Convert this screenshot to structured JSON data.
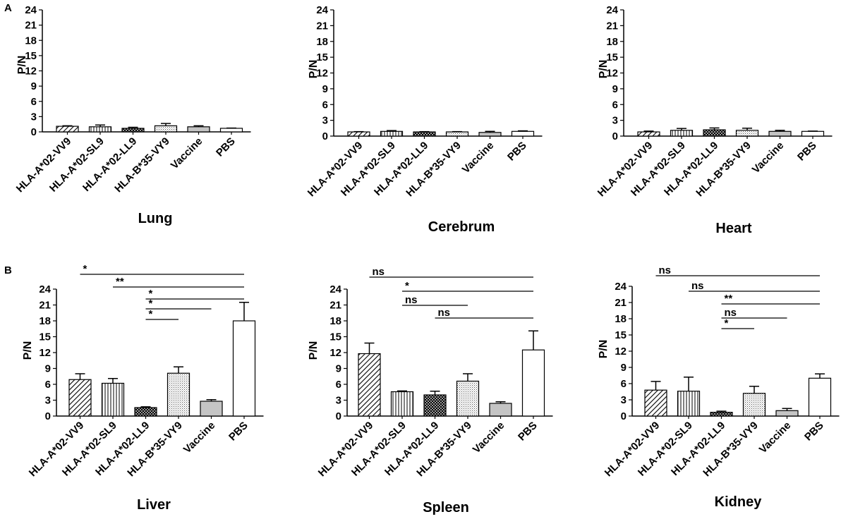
{
  "panel_labels": [
    "A",
    "B"
  ],
  "chart_data": [
    {
      "type": "bar",
      "title": "Lung",
      "ylabel": "P/N",
      "ylim": [
        0,
        24
      ],
      "yticks": [
        0,
        3,
        6,
        9,
        12,
        15,
        18,
        21,
        24
      ],
      "categories": [
        "HLA-A*02-VV9",
        "HLA-A*02-SL9",
        "HLA-A*02-LL9",
        "HLA-B*35-VY9",
        "Vaccine",
        "PBS"
      ],
      "values": [
        1.1,
        1.0,
        0.7,
        1.2,
        1.0,
        0.7
      ],
      "errors": [
        0.1,
        0.35,
        0.2,
        0.45,
        0.2,
        0.05
      ],
      "significance": []
    },
    {
      "type": "bar",
      "title": "Cerebrum",
      "ylabel": "P/N",
      "ylim": [
        0,
        24
      ],
      "yticks": [
        0,
        3,
        6,
        9,
        12,
        15,
        18,
        21,
        24
      ],
      "categories": [
        "HLA-A*02-VV9",
        "HLA-A*02-SL9",
        "HLA-A*02-LL9",
        "HLA-B*35-VY9",
        "Vaccine",
        "PBS"
      ],
      "values": [
        0.8,
        0.9,
        0.8,
        0.8,
        0.7,
        0.9
      ],
      "errors": [
        0.05,
        0.15,
        0.05,
        0.05,
        0.2,
        0.1
      ],
      "significance": []
    },
    {
      "type": "bar",
      "title": "Heart",
      "ylabel": "P/N",
      "ylim": [
        0,
        24
      ],
      "yticks": [
        0,
        3,
        6,
        9,
        12,
        15,
        18,
        21,
        24
      ],
      "categories": [
        "HLA-A*02-VV9",
        "HLA-A*02-SL9",
        "HLA-A*02-LL9",
        "HLA-B*35-VY9",
        "Vaccine",
        "PBS"
      ],
      "values": [
        0.8,
        1.1,
        1.2,
        1.1,
        0.9,
        0.9
      ],
      "errors": [
        0.15,
        0.35,
        0.35,
        0.4,
        0.2,
        0.05
      ],
      "significance": []
    },
    {
      "type": "bar",
      "title": "Liver",
      "ylabel": "P/N",
      "ylim": [
        0,
        24
      ],
      "yticks": [
        0,
        3,
        6,
        9,
        12,
        15,
        18,
        21,
        24
      ],
      "categories": [
        "HLA-A*02-VV9",
        "HLA-A*02-SL9",
        "HLA-A*02-LL9",
        "HLA-B*35-VY9",
        "Vaccine",
        "PBS"
      ],
      "values": [
        6.9,
        6.2,
        1.6,
        8.1,
        2.8,
        18.0
      ],
      "errors": [
        1.1,
        0.9,
        0.15,
        1.2,
        0.3,
        3.5
      ],
      "significance": [
        {
          "from": 0,
          "to": 5,
          "label": "*"
        },
        {
          "from": 1,
          "to": 5,
          "label": "**"
        },
        {
          "from": 2,
          "to": 5,
          "label": "*"
        },
        {
          "from": 2,
          "to": 4,
          "label": "*"
        },
        {
          "from": 2,
          "to": 3,
          "label": "*"
        }
      ]
    },
    {
      "type": "bar",
      "title": "Spleen",
      "ylabel": "P/N",
      "ylim": [
        0,
        24
      ],
      "yticks": [
        0,
        3,
        6,
        9,
        12,
        15,
        18,
        21,
        24
      ],
      "categories": [
        "HLA-A*02-VV9",
        "HLA-A*02-SL9",
        "HLA-A*02-LL9",
        "HLA-B*35-VY9",
        "Vaccine",
        "PBS"
      ],
      "values": [
        11.8,
        4.6,
        4.0,
        6.6,
        2.4,
        12.5
      ],
      "errors": [
        2.0,
        0.15,
        0.7,
        1.4,
        0.3,
        3.6
      ],
      "significance": [
        {
          "from": 0,
          "to": 5,
          "label": "ns"
        },
        {
          "from": 1,
          "to": 5,
          "label": "*"
        },
        {
          "from": 1,
          "to": 3,
          "label": "ns"
        },
        {
          "from": 2,
          "to": 5,
          "label": "ns"
        }
      ]
    },
    {
      "type": "bar",
      "title": "Kidney",
      "ylabel": "P/N",
      "ylim": [
        0,
        24
      ],
      "yticks": [
        0,
        3,
        6,
        9,
        12,
        15,
        18,
        21,
        24
      ],
      "categories": [
        "HLA-A*02-VV9",
        "HLA-A*02-SL9",
        "HLA-A*02-LL9",
        "HLA-B*35-VY9",
        "Vaccine",
        "PBS"
      ],
      "values": [
        4.8,
        4.6,
        0.7,
        4.2,
        1.0,
        7.0
      ],
      "errors": [
        1.6,
        2.6,
        0.2,
        1.3,
        0.4,
        0.8
      ],
      "significance": [
        {
          "from": 0,
          "to": 5,
          "label": "ns"
        },
        {
          "from": 1,
          "to": 5,
          "label": "ns"
        },
        {
          "from": 2,
          "to": 5,
          "label": "**"
        },
        {
          "from": 2,
          "to": 4,
          "label": "ns"
        },
        {
          "from": 2,
          "to": 3,
          "label": "*"
        }
      ]
    }
  ]
}
